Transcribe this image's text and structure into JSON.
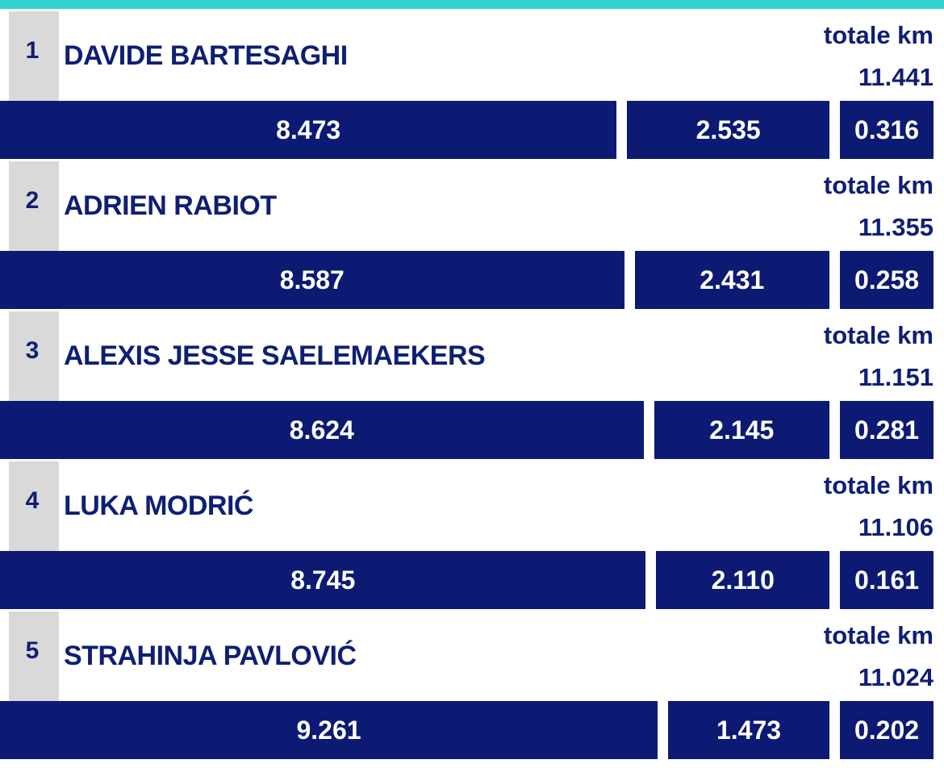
{
  "colors": {
    "accent_strip": "#2ed3cf",
    "bar": "#0c1a73",
    "text": "#0e1f73",
    "rank_background": "#d9d9d9"
  },
  "chart_data": {
    "type": "bar",
    "stacked": true,
    "orientation": "horizontal",
    "title": "",
    "total_label": "totale km",
    "categories": [
      "DAVIDE BARTESAGHI",
      "ADRIEN RABIOT",
      "ALEXIS JESSE SAELEMAEKERS",
      "LUKA MODRIĆ",
      "STRAHINJA PAVLOVIĆ"
    ],
    "players": [
      {
        "rank": "1",
        "name": "DAVIDE BARTESAGHI",
        "total": "11.441",
        "segments": [
          "8.473",
          "2.535",
          "0.316"
        ]
      },
      {
        "rank": "2",
        "name": "ADRIEN RABIOT",
        "total": "11.355",
        "segments": [
          "8.587",
          "2.431",
          "0.258"
        ]
      },
      {
        "rank": "3",
        "name": "ALEXIS JESSE SAELEMAEKERS",
        "total": "11.151",
        "segments": [
          "8.624",
          "2.145",
          "0.281"
        ]
      },
      {
        "rank": "4",
        "name": "LUKA MODRIĆ",
        "total": "11.106",
        "segments": [
          "8.745",
          "2.110",
          "0.161"
        ]
      },
      {
        "rank": "5",
        "name": "STRAHINJA PAVLOVIĆ",
        "total": "11.024",
        "segments": [
          "9.261",
          "1.473",
          "0.202"
        ]
      }
    ]
  }
}
